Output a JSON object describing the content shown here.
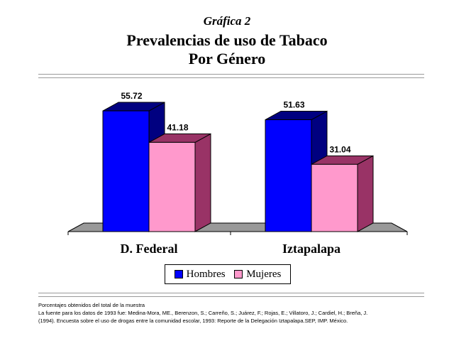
{
  "header": {
    "supertitle": "Gráfica 2",
    "title_line1": "Prevalencias de uso de Tabaco",
    "title_line2": "Por Género"
  },
  "chart_data": {
    "type": "bar",
    "title": "Prevalencias de uso de Tabaco Por Género",
    "categories": [
      "D. Federal",
      "Iztapalapa"
    ],
    "series": [
      {
        "name": "Hombres",
        "values": [
          55.72,
          51.63
        ],
        "color": "#0000ff",
        "side_color": "#000080"
      },
      {
        "name": "Mujeres",
        "values": [
          41.18,
          31.04
        ],
        "color": "#ff99cc",
        "side_color": "#993366"
      }
    ],
    "ylim": [
      0,
      60
    ],
    "grid": false,
    "data_labels": true,
    "legend": "bottom",
    "style": "3d-columns"
  },
  "legend": {
    "items": [
      {
        "label": "Hombres",
        "color": "#0000ff"
      },
      {
        "label": "Mujeres",
        "color": "#ff99cc"
      }
    ]
  },
  "footnotes": [
    "Porcentajes obtenidos del total de la muestra",
    "La fuente para los datos de 1993 fue: Medina-Mora, ME., Berenzon, S.; Carreño, S.; Juárez, F.; Rojas, E.; Villatoro, J.; Cardiel, H.; Breña, J.",
    "(1994). Encuesta sobre el uso de drogas entre la comunidad escolar, 1993: Reporte de la Delegación Iztapalapa.SEP, IMP. México."
  ]
}
